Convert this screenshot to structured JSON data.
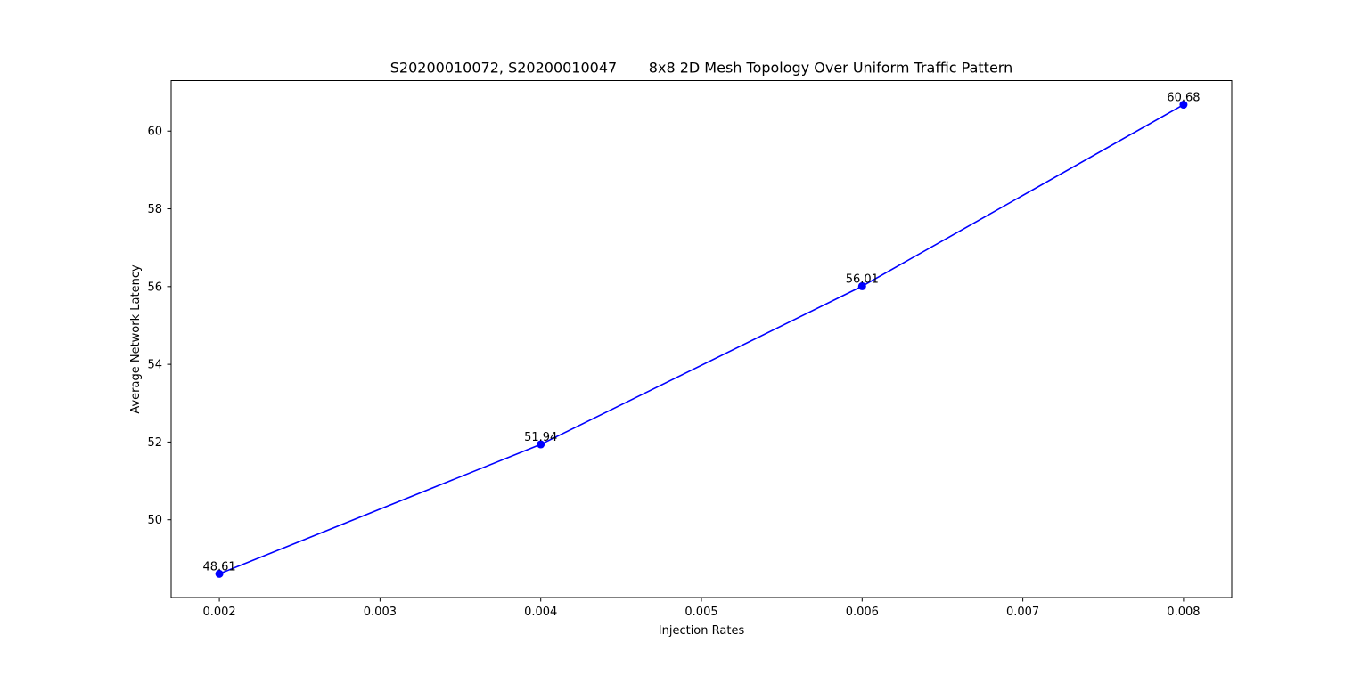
{
  "chart_data": {
    "type": "line",
    "title": "S20200010072, S20200010047       8x8 2D Mesh Topology Over Uniform Traffic Pattern",
    "xlabel": "Injection Rates",
    "ylabel": "Average Network Latency",
    "xlim": [
      0.0017,
      0.0083
    ],
    "ylim": [
      48.0,
      61.3
    ],
    "x_ticks": [
      0.002,
      0.003,
      0.004,
      0.005,
      0.006,
      0.007,
      0.008
    ],
    "x_tick_labels": [
      "0.002",
      "0.003",
      "0.004",
      "0.005",
      "0.006",
      "0.007",
      "0.008"
    ],
    "y_ticks": [
      50,
      52,
      54,
      56,
      58,
      60
    ],
    "y_tick_labels": [
      "50",
      "52",
      "54",
      "56",
      "58",
      "60"
    ],
    "grid": false,
    "legend": "none",
    "series": [
      {
        "color": "#0000ff",
        "marker": "circle",
        "points": [
          {
            "x": 0.002,
            "y": 48.61,
            "label": "48.61"
          },
          {
            "x": 0.004,
            "y": 51.94,
            "label": "51.94"
          },
          {
            "x": 0.006,
            "y": 56.01,
            "label": "56.01"
          },
          {
            "x": 0.008,
            "y": 60.68,
            "label": "60.68"
          }
        ]
      }
    ]
  }
}
